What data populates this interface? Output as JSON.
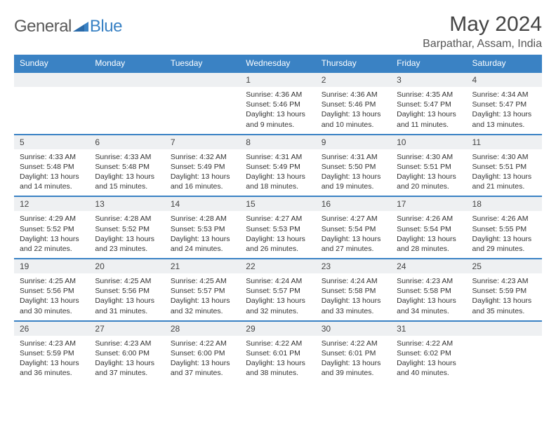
{
  "logo": {
    "word1": "General",
    "word2": "Blue"
  },
  "title": "May 2024",
  "location": "Barpathar, Assam, India",
  "colors": {
    "accent": "#3a82c4",
    "daynum_bg": "#eef0f2",
    "text": "#333333",
    "header_text": "#ffffff",
    "logo_gray": "#5a5a5a"
  },
  "fonts": {
    "title_pt": 30,
    "location_pt": 16,
    "header_pt": 12,
    "daynum_pt": 12,
    "body_pt": 10.5
  },
  "weekdays": [
    "Sunday",
    "Monday",
    "Tuesday",
    "Wednesday",
    "Thursday",
    "Friday",
    "Saturday"
  ],
  "weeks": [
    [
      null,
      null,
      null,
      {
        "n": "1",
        "sr": "Sunrise: 4:36 AM",
        "ss": "Sunset: 5:46 PM",
        "dl": "Daylight: 13 hours and 9 minutes."
      },
      {
        "n": "2",
        "sr": "Sunrise: 4:36 AM",
        "ss": "Sunset: 5:46 PM",
        "dl": "Daylight: 13 hours and 10 minutes."
      },
      {
        "n": "3",
        "sr": "Sunrise: 4:35 AM",
        "ss": "Sunset: 5:47 PM",
        "dl": "Daylight: 13 hours and 11 minutes."
      },
      {
        "n": "4",
        "sr": "Sunrise: 4:34 AM",
        "ss": "Sunset: 5:47 PM",
        "dl": "Daylight: 13 hours and 13 minutes."
      }
    ],
    [
      {
        "n": "5",
        "sr": "Sunrise: 4:33 AM",
        "ss": "Sunset: 5:48 PM",
        "dl": "Daylight: 13 hours and 14 minutes."
      },
      {
        "n": "6",
        "sr": "Sunrise: 4:33 AM",
        "ss": "Sunset: 5:48 PM",
        "dl": "Daylight: 13 hours and 15 minutes."
      },
      {
        "n": "7",
        "sr": "Sunrise: 4:32 AM",
        "ss": "Sunset: 5:49 PM",
        "dl": "Daylight: 13 hours and 16 minutes."
      },
      {
        "n": "8",
        "sr": "Sunrise: 4:31 AM",
        "ss": "Sunset: 5:49 PM",
        "dl": "Daylight: 13 hours and 18 minutes."
      },
      {
        "n": "9",
        "sr": "Sunrise: 4:31 AM",
        "ss": "Sunset: 5:50 PM",
        "dl": "Daylight: 13 hours and 19 minutes."
      },
      {
        "n": "10",
        "sr": "Sunrise: 4:30 AM",
        "ss": "Sunset: 5:51 PM",
        "dl": "Daylight: 13 hours and 20 minutes."
      },
      {
        "n": "11",
        "sr": "Sunrise: 4:30 AM",
        "ss": "Sunset: 5:51 PM",
        "dl": "Daylight: 13 hours and 21 minutes."
      }
    ],
    [
      {
        "n": "12",
        "sr": "Sunrise: 4:29 AM",
        "ss": "Sunset: 5:52 PM",
        "dl": "Daylight: 13 hours and 22 minutes."
      },
      {
        "n": "13",
        "sr": "Sunrise: 4:28 AM",
        "ss": "Sunset: 5:52 PM",
        "dl": "Daylight: 13 hours and 23 minutes."
      },
      {
        "n": "14",
        "sr": "Sunrise: 4:28 AM",
        "ss": "Sunset: 5:53 PM",
        "dl": "Daylight: 13 hours and 24 minutes."
      },
      {
        "n": "15",
        "sr": "Sunrise: 4:27 AM",
        "ss": "Sunset: 5:53 PM",
        "dl": "Daylight: 13 hours and 26 minutes."
      },
      {
        "n": "16",
        "sr": "Sunrise: 4:27 AM",
        "ss": "Sunset: 5:54 PM",
        "dl": "Daylight: 13 hours and 27 minutes."
      },
      {
        "n": "17",
        "sr": "Sunrise: 4:26 AM",
        "ss": "Sunset: 5:54 PM",
        "dl": "Daylight: 13 hours and 28 minutes."
      },
      {
        "n": "18",
        "sr": "Sunrise: 4:26 AM",
        "ss": "Sunset: 5:55 PM",
        "dl": "Daylight: 13 hours and 29 minutes."
      }
    ],
    [
      {
        "n": "19",
        "sr": "Sunrise: 4:25 AM",
        "ss": "Sunset: 5:56 PM",
        "dl": "Daylight: 13 hours and 30 minutes."
      },
      {
        "n": "20",
        "sr": "Sunrise: 4:25 AM",
        "ss": "Sunset: 5:56 PM",
        "dl": "Daylight: 13 hours and 31 minutes."
      },
      {
        "n": "21",
        "sr": "Sunrise: 4:25 AM",
        "ss": "Sunset: 5:57 PM",
        "dl": "Daylight: 13 hours and 32 minutes."
      },
      {
        "n": "22",
        "sr": "Sunrise: 4:24 AM",
        "ss": "Sunset: 5:57 PM",
        "dl": "Daylight: 13 hours and 32 minutes."
      },
      {
        "n": "23",
        "sr": "Sunrise: 4:24 AM",
        "ss": "Sunset: 5:58 PM",
        "dl": "Daylight: 13 hours and 33 minutes."
      },
      {
        "n": "24",
        "sr": "Sunrise: 4:23 AM",
        "ss": "Sunset: 5:58 PM",
        "dl": "Daylight: 13 hours and 34 minutes."
      },
      {
        "n": "25",
        "sr": "Sunrise: 4:23 AM",
        "ss": "Sunset: 5:59 PM",
        "dl": "Daylight: 13 hours and 35 minutes."
      }
    ],
    [
      {
        "n": "26",
        "sr": "Sunrise: 4:23 AM",
        "ss": "Sunset: 5:59 PM",
        "dl": "Daylight: 13 hours and 36 minutes."
      },
      {
        "n": "27",
        "sr": "Sunrise: 4:23 AM",
        "ss": "Sunset: 6:00 PM",
        "dl": "Daylight: 13 hours and 37 minutes."
      },
      {
        "n": "28",
        "sr": "Sunrise: 4:22 AM",
        "ss": "Sunset: 6:00 PM",
        "dl": "Daylight: 13 hours and 37 minutes."
      },
      {
        "n": "29",
        "sr": "Sunrise: 4:22 AM",
        "ss": "Sunset: 6:01 PM",
        "dl": "Daylight: 13 hours and 38 minutes."
      },
      {
        "n": "30",
        "sr": "Sunrise: 4:22 AM",
        "ss": "Sunset: 6:01 PM",
        "dl": "Daylight: 13 hours and 39 minutes."
      },
      {
        "n": "31",
        "sr": "Sunrise: 4:22 AM",
        "ss": "Sunset: 6:02 PM",
        "dl": "Daylight: 13 hours and 40 minutes."
      },
      null
    ]
  ]
}
